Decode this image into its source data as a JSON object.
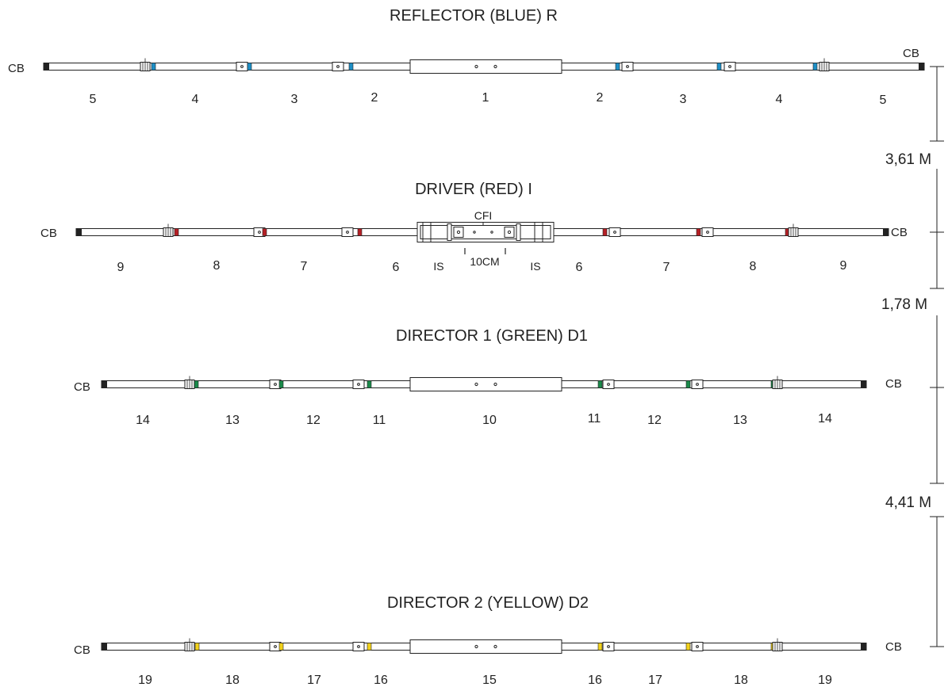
{
  "colors": {
    "blue": "#1e8fc6",
    "red": "#b52025",
    "green": "#1a8a4a",
    "yellow": "#f2d21b",
    "ink": "#222222"
  },
  "elements": [
    {
      "title": "REFLECTOR (BLUE) R",
      "color_key": "blue",
      "cb_left": "CB",
      "cb_right": "CB",
      "segments": [
        "5",
        "4",
        "3",
        "2",
        "1",
        "2",
        "3",
        "4",
        "5"
      ]
    },
    {
      "title": "DRIVER (RED) I",
      "color_key": "red",
      "cb_left": "CB",
      "cb_right": "CB",
      "segments": [
        "9",
        "8",
        "7",
        "6",
        "6",
        "7",
        "8",
        "9"
      ],
      "center_label": "CFI",
      "is_label": "IS",
      "gap_label": "10CM"
    },
    {
      "title": "DIRECTOR 1 (GREEN) D1",
      "color_key": "green",
      "cb_left": "CB",
      "cb_right": "CB",
      "segments": [
        "14",
        "13",
        "12",
        "11",
        "10",
        "11",
        "12",
        "13",
        "14"
      ]
    },
    {
      "title": "DIRECTOR 2 (YELLOW) D2",
      "color_key": "yellow",
      "cb_left": "CB",
      "cb_right": "CB",
      "segments": [
        "19",
        "18",
        "17",
        "16",
        "15",
        "16",
        "17",
        "18",
        "19"
      ]
    }
  ],
  "spacings": [
    "3,61 M",
    "1,78 M",
    "4,41 M"
  ]
}
